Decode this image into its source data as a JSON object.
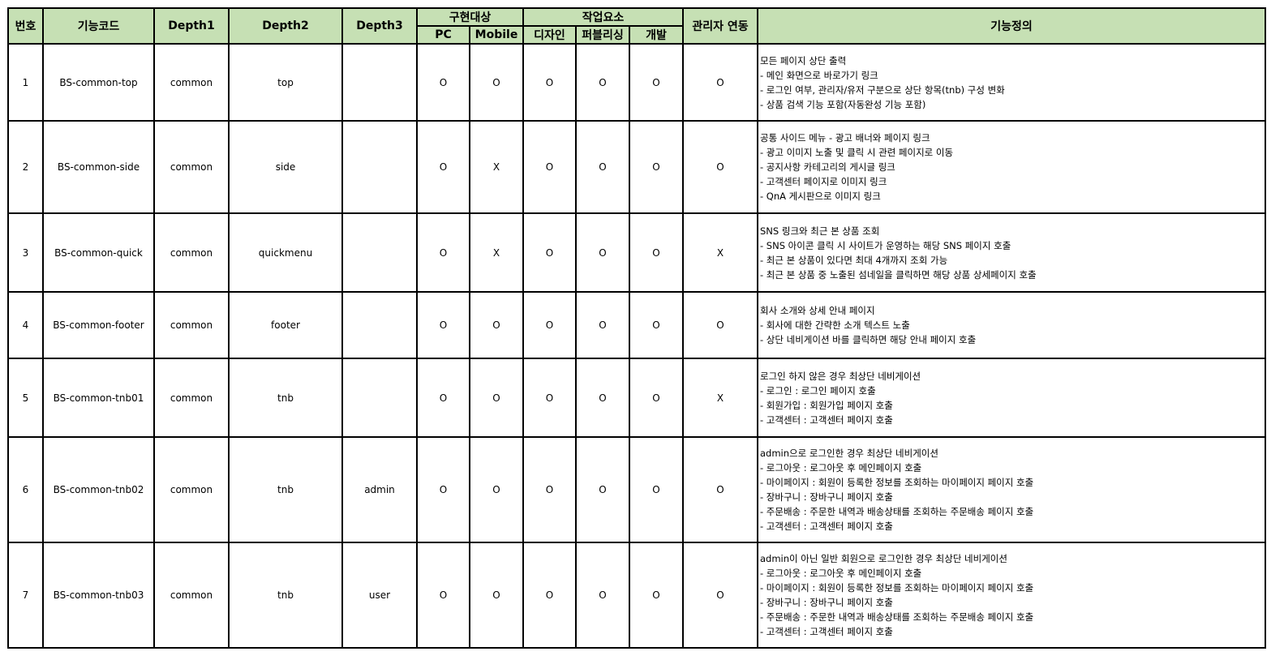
{
  "header": {
    "no": "번호",
    "code": "기능코드",
    "depth1": "Depth1",
    "depth2": "Depth2",
    "depth3": "Depth3",
    "impl_group": "구현대상",
    "pc": "PC",
    "mobile": "Mobile",
    "work_group": "작업요소",
    "design": "디자인",
    "publishing": "퍼블리싱",
    "dev": "개발",
    "admin_link": "관리자 연동",
    "definition": "기능정의"
  },
  "rows": [
    {
      "no": "1",
      "code": "BS-common-top",
      "depth1": "common",
      "depth2": "top",
      "depth3": "",
      "pc": "O",
      "mobile": "O",
      "design": "O",
      "publishing": "O",
      "dev": "O",
      "admin": "O",
      "lines": [
        "모든 페이지 상단 출력",
        "- 메인 화면으로 바로가기 링크",
        "- 로그인 여부, 관리자/유저 구분으로 상단 항목(tnb) 구성 변화",
        "- 상품 검색 기능 포함(자동완성 기능 포함)"
      ]
    },
    {
      "no": "2",
      "code": "BS-common-side",
      "depth1": "common",
      "depth2": "side",
      "depth3": "",
      "pc": "O",
      "mobile": "X",
      "design": "O",
      "publishing": "O",
      "dev": "O",
      "admin": "O",
      "lines": [
        "공통 사이드 메뉴 - 광고 배너와 페이지 링크",
        "- 광고 이미지 노출 및 클릭 시 관련 페이지로 이동",
        "- 공지사항 카테고리의 게시글 링크",
        "- 고객센터 페이지로 이미지 링크",
        "- QnA 게시판으로 이미지 링크"
      ]
    },
    {
      "no": "3",
      "code": "BS-common-quick",
      "depth1": "common",
      "depth2": "quickmenu",
      "depth3": "",
      "pc": "O",
      "mobile": "X",
      "design": "O",
      "publishing": "O",
      "dev": "O",
      "admin": "X",
      "lines": [
        "SNS 링크와 최근 본 상품 조회",
        "- SNS 아이콘 클릭 시 사이트가 운영하는 해당 SNS 페이지 호출",
        "- 최근 본 상품이 있다면 최대 4개까지 조회 가능",
        "- 최근 본 상품 중 노출된 섬네일을 클릭하면 해당 상품 상세페이지 호출"
      ]
    },
    {
      "no": "4",
      "code": "BS-common-footer",
      "depth1": "common",
      "depth2": "footer",
      "depth3": "",
      "pc": "O",
      "mobile": "O",
      "design": "O",
      "publishing": "O",
      "dev": "O",
      "admin": "O",
      "lines": [
        "회사 소개와 상세 안내 페이지",
        "- 회사에 대한 간략한 소개 텍스트 노출",
        "- 상단 네비게이션 바를 클릭하면 해당 안내 페이지 호출"
      ]
    },
    {
      "no": "5",
      "code": "BS-common-tnb01",
      "depth1": "common",
      "depth2": "tnb",
      "depth3": "",
      "pc": "O",
      "mobile": "O",
      "design": "O",
      "publishing": "O",
      "dev": "O",
      "admin": "X",
      "lines": [
        "로그인 하지 않은 경우 최상단 네비게이션",
        "- 로그인 : 로그인 페이지 호출",
        "- 회원가입 : 회원가입 페이지 호출",
        "- 고객센터 : 고객센터 페이지 호출"
      ]
    },
    {
      "no": "6",
      "code": "BS-common-tnb02",
      "depth1": "common",
      "depth2": "tnb",
      "depth3": "admin",
      "pc": "O",
      "mobile": "O",
      "design": "O",
      "publishing": "O",
      "dev": "O",
      "admin": "O",
      "lines": [
        "admin으로 로그인한 경우 최상단 네비게이션",
        "- 로그아웃 : 로그아웃 후 메인페이지 호출",
        "- 마이페이지 : 회원이 등록한 정보를 조회하는 마이페이지 페이지 호출",
        "- 장바구니 : 장바구니 페이지 호출",
        "- 주문배송 : 주문한 내역과 배송상태를 조회하는 주문배송 페이지 호출",
        "- 고객센터 : 고객센터 페이지 호출"
      ]
    },
    {
      "no": "7",
      "code": "BS-common-tnb03",
      "depth1": "common",
      "depth2": "tnb",
      "depth3": "user",
      "pc": "O",
      "mobile": "O",
      "design": "O",
      "publishing": "O",
      "dev": "O",
      "admin": "O",
      "lines": [
        "admin이 아닌 일반 회원으로 로그인한 경우 최상단 네비게이션",
        "- 로그아웃 : 로그아웃 후 메인페이지 호출",
        "- 마이페이지 : 회원이 등록한 정보를 조회하는 마이페이지 페이지 호출",
        "- 장바구니 : 장바구니 페이지 호출",
        "- 주문배송 : 주문한 내역과 배송상태를 조회하는 주문배송 페이지 호출",
        "- 고객센터 : 고객센터 페이지 호출"
      ]
    }
  ]
}
